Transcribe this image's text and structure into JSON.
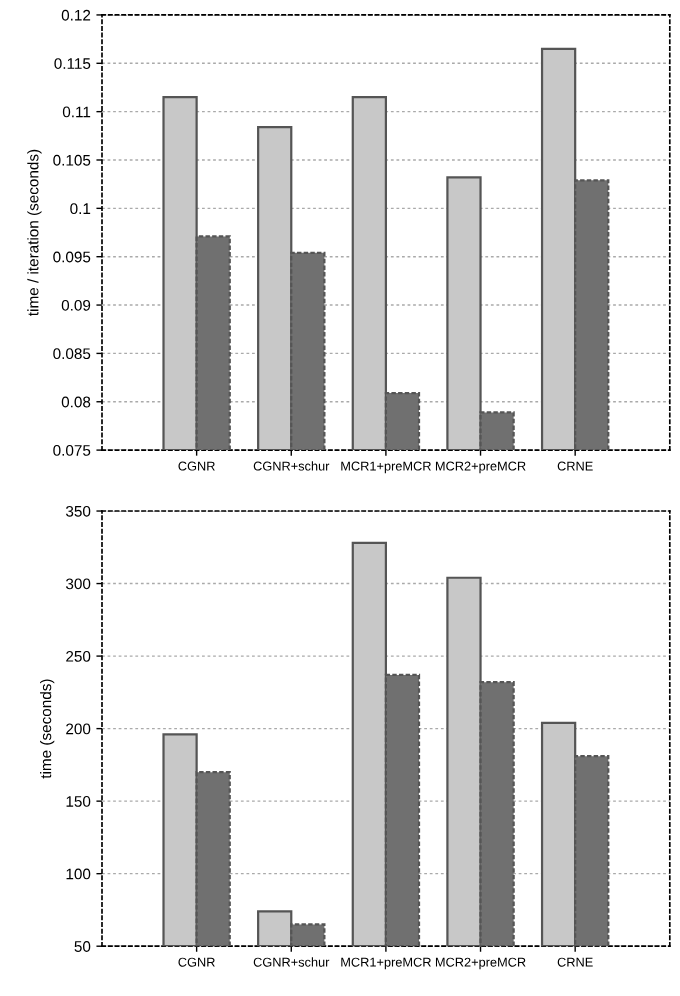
{
  "chart_data": [
    {
      "type": "bar",
      "categories": [
        "CGNR",
        "CGNR+schur",
        "MCR1+preMCR",
        "MCR2+preMCR",
        "CRNE"
      ],
      "ylabel": "time / iteration (seconds)",
      "ylim": [
        0.075,
        0.12
      ],
      "yticks": [
        {
          "value": 0.075,
          "label": "0.075"
        },
        {
          "value": 0.08,
          "label": "0.08"
        },
        {
          "value": 0.085,
          "label": "0.085"
        },
        {
          "value": 0.09,
          "label": "0.09"
        },
        {
          "value": 0.095,
          "label": "0.095"
        },
        {
          "value": 0.1,
          "label": "0.1"
        },
        {
          "value": 0.105,
          "label": "0.105"
        },
        {
          "value": 0.11,
          "label": "0.11"
        },
        {
          "value": 0.115,
          "label": "0.115"
        },
        {
          "value": 0.12,
          "label": "0.12"
        }
      ],
      "grid": "y",
      "series": [
        {
          "color": "#c8c8c8",
          "values": [
            0.1115,
            0.1084,
            0.1115,
            0.1032,
            0.1165
          ]
        },
        {
          "color": "#707070",
          "values": [
            0.0971,
            0.0954,
            0.0809,
            0.0789,
            0.1029
          ]
        }
      ]
    },
    {
      "type": "bar",
      "categories": [
        "CGNR",
        "CGNR+schur",
        "MCR1+preMCR",
        "MCR2+preMCR",
        "CRNE"
      ],
      "ylabel": "time (seconds)",
      "ylim": [
        50,
        350
      ],
      "yticks": [
        50,
        100,
        150,
        200,
        250,
        300,
        350
      ],
      "grid": "y",
      "series": [
        {
          "color": "#c8c8c8",
          "values": [
            196,
            74,
            328,
            304,
            204
          ]
        },
        {
          "color": "#707070",
          "values": [
            170,
            65,
            237,
            232,
            181
          ]
        }
      ]
    }
  ]
}
